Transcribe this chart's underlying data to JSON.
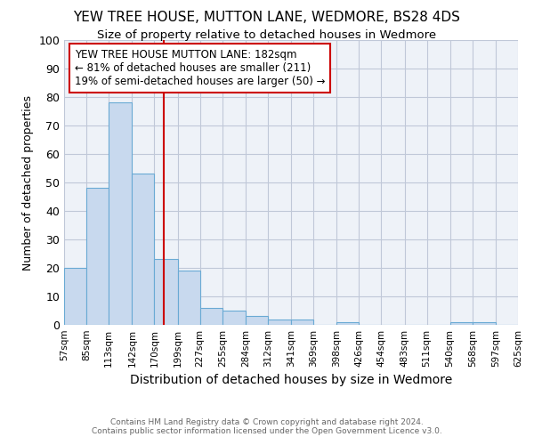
{
  "title1": "YEW TREE HOUSE, MUTTON LANE, WEDMORE, BS28 4DS",
  "title2": "Size of property relative to detached houses in Wedmore",
  "xlabel": "Distribution of detached houses by size in Wedmore",
  "ylabel": "Number of detached properties",
  "bin_labels": [
    "57sqm",
    "85sqm",
    "113sqm",
    "142sqm",
    "170sqm",
    "199sqm",
    "227sqm",
    "255sqm",
    "284sqm",
    "312sqm",
    "341sqm",
    "369sqm",
    "398sqm",
    "426sqm",
    "454sqm",
    "483sqm",
    "511sqm",
    "540sqm",
    "568sqm",
    "597sqm",
    "625sqm"
  ],
  "bin_edges": [
    57,
    85,
    113,
    142,
    170,
    199,
    227,
    255,
    284,
    312,
    341,
    369,
    398,
    426,
    454,
    483,
    511,
    540,
    568,
    597,
    625
  ],
  "bar_heights": [
    20,
    48,
    78,
    53,
    23,
    19,
    6,
    5,
    3,
    2,
    2,
    0,
    1,
    0,
    0,
    0,
    0,
    1,
    1,
    0
  ],
  "bar_color": "#c8d9ee",
  "bar_edge_color": "#6aaad4",
  "vline_x": 182,
  "vline_color": "#cc0000",
  "annotation_line1": "YEW TREE HOUSE MUTTON LANE: 182sqm",
  "annotation_line2": "← 81% of detached houses are smaller (211)",
  "annotation_line3": "19% of semi-detached houses are larger (50) →",
  "annotation_box_color": "#ffffff",
  "annotation_box_edge": "#cc0000",
  "ylim": [
    0,
    100
  ],
  "yticks": [
    0,
    10,
    20,
    30,
    40,
    50,
    60,
    70,
    80,
    90,
    100
  ],
  "footer1": "Contains HM Land Registry data © Crown copyright and database right 2024.",
  "footer2": "Contains public sector information licensed under the Open Government Licence v3.0.",
  "bg_color": "#ffffff",
  "plot_bg_color": "#eef2f8",
  "grid_color": "#c0c8d8"
}
